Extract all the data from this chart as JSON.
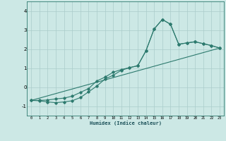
{
  "title": "",
  "xlabel": "Humidex (Indice chaleur)",
  "background_color": "#cce8e5",
  "grid_color": "#aaccca",
  "line_color": "#2d7a6e",
  "xlim": [
    -0.5,
    23.5
  ],
  "ylim": [
    -1.5,
    4.5
  ],
  "xticks": [
    0,
    1,
    2,
    3,
    4,
    5,
    6,
    7,
    8,
    9,
    10,
    11,
    12,
    13,
    14,
    15,
    16,
    17,
    18,
    19,
    20,
    21,
    22,
    23
  ],
  "yticks": [
    -1,
    0,
    1,
    2,
    3,
    4
  ],
  "series1_x": [
    0,
    1,
    2,
    3,
    4,
    5,
    6,
    7,
    8,
    9,
    10,
    11,
    12,
    13,
    14,
    15,
    16,
    17,
    18,
    19,
    20,
    21,
    22,
    23
  ],
  "series1_y": [
    -0.7,
    -0.72,
    -0.78,
    -0.82,
    -0.78,
    -0.72,
    -0.55,
    -0.25,
    0.05,
    0.42,
    0.62,
    0.88,
    1.02,
    1.12,
    1.9,
    3.05,
    3.55,
    3.3,
    2.25,
    2.32,
    2.38,
    2.28,
    2.18,
    2.05
  ],
  "series2_x": [
    0,
    1,
    2,
    3,
    4,
    5,
    6,
    7,
    8,
    9,
    10,
    11,
    12,
    13,
    14,
    15,
    16,
    17,
    18,
    19,
    20,
    21,
    22,
    23
  ],
  "series2_y": [
    -0.7,
    -0.7,
    -0.68,
    -0.62,
    -0.58,
    -0.48,
    -0.28,
    -0.08,
    0.32,
    0.52,
    0.78,
    0.92,
    1.02,
    1.12,
    1.9,
    3.05,
    3.55,
    3.3,
    2.25,
    2.32,
    2.38,
    2.28,
    2.18,
    2.05
  ],
  "series3_x": [
    0,
    23
  ],
  "series3_y": [
    -0.7,
    2.05
  ]
}
